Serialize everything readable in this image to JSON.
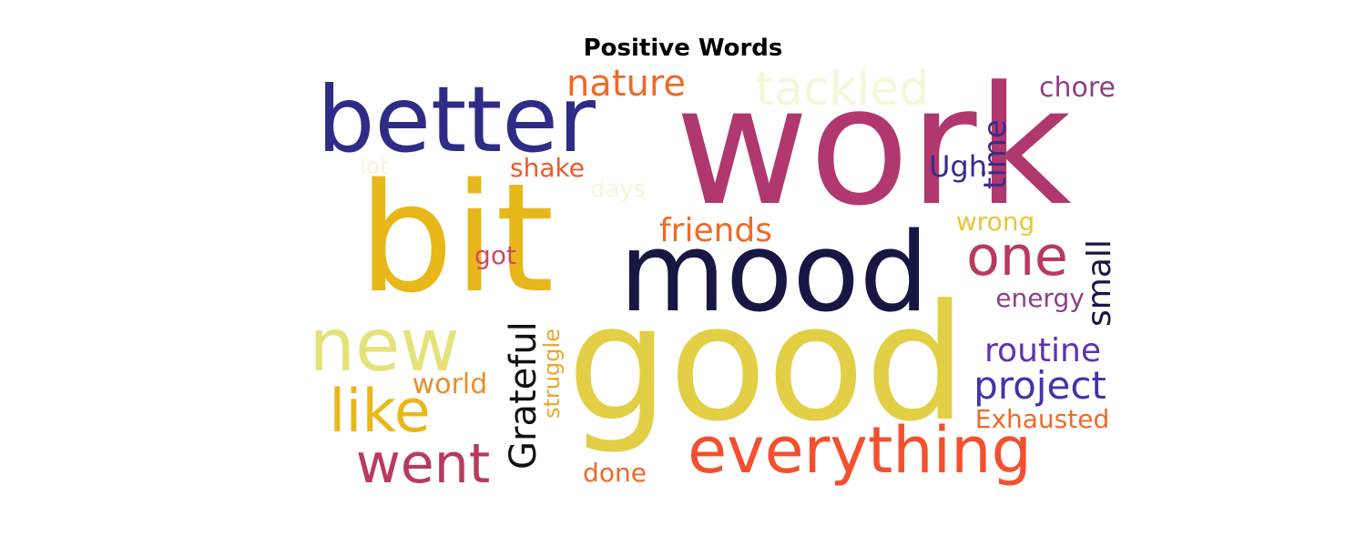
{
  "title": "Positive Words",
  "words": [
    {
      "text": "work",
      "color": "#b0386e",
      "vertical": false
    },
    {
      "text": "bit",
      "color": "#e8b71a",
      "vertical": false
    },
    {
      "text": "good",
      "color": "#e2cf45",
      "vertical": false
    },
    {
      "text": "mood",
      "color": "#181642",
      "vertical": false
    },
    {
      "text": "better",
      "color": "#2e2c86",
      "vertical": false
    },
    {
      "text": "new",
      "color": "#e6e27a",
      "vertical": false
    },
    {
      "text": "everything",
      "color": "#f4502e",
      "vertical": false
    },
    {
      "text": "like",
      "color": "#e8b71a",
      "vertical": false
    },
    {
      "text": "went",
      "color": "#b83a5e",
      "vertical": false
    },
    {
      "text": "one",
      "color": "#b83a5e",
      "vertical": false
    },
    {
      "text": "tackled",
      "color": "#f7f6d9",
      "vertical": false
    },
    {
      "text": "friends",
      "color": "#ee6a28",
      "vertical": false
    },
    {
      "text": "nature",
      "color": "#ee6a28",
      "vertical": false
    },
    {
      "text": "routine",
      "color": "#5d33b0",
      "vertical": false
    },
    {
      "text": "project",
      "color": "#4731a8",
      "vertical": false
    },
    {
      "text": "Grateful",
      "color": "#111111",
      "vertical": true
    },
    {
      "text": "small",
      "color": "#181642",
      "vertical": true
    },
    {
      "text": "time",
      "color": "#3b2a8c",
      "vertical": true
    },
    {
      "text": "struggle",
      "color": "#e9a72e",
      "vertical": true
    },
    {
      "text": "chore",
      "color": "#8f3f82",
      "vertical": false
    },
    {
      "text": "Ugh",
      "color": "#3b2a8c",
      "vertical": false
    },
    {
      "text": "shake",
      "color": "#ee5a28",
      "vertical": false
    },
    {
      "text": "lot",
      "color": "#f8f4dc",
      "vertical": false
    },
    {
      "text": "days",
      "color": "#f8f4dc",
      "vertical": false
    },
    {
      "text": "wrong",
      "color": "#e8c63a",
      "vertical": false
    },
    {
      "text": "got",
      "color": "#cf4a5c",
      "vertical": false
    },
    {
      "text": "energy",
      "color": "#8f3f82",
      "vertical": false
    },
    {
      "text": "world",
      "color": "#e6902a",
      "vertical": false
    },
    {
      "text": "Exhausted",
      "color": "#ee6a28",
      "vertical": false
    },
    {
      "text": "done",
      "color": "#ee6a28",
      "vertical": false
    }
  ]
}
